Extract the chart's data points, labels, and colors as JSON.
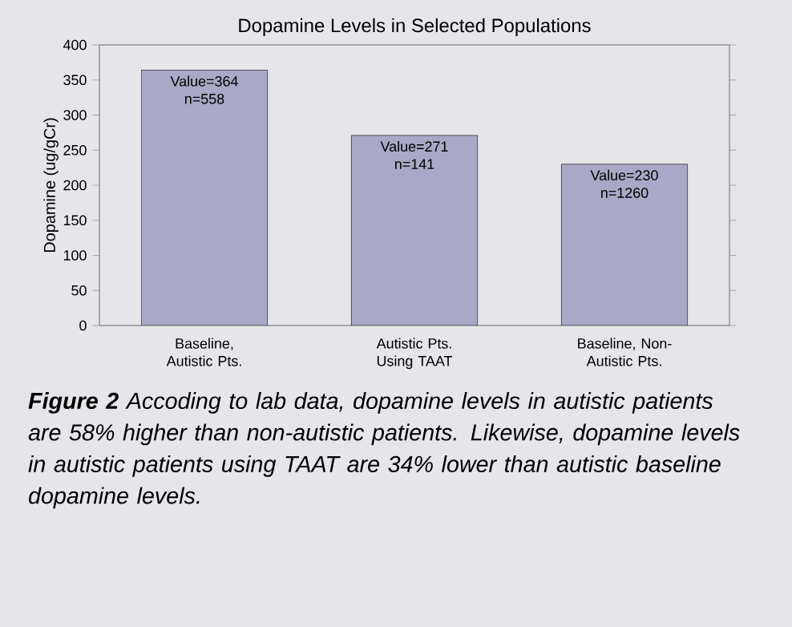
{
  "chart_data": {
    "type": "bar",
    "title": "Dopamine Levels in Selected Populations",
    "ylabel": "Dopamine (ug/gCr)",
    "categories": [
      "Baseline, Autistic Pts.",
      "Autistic Pts. Using TAAT",
      "Baseline, Non-Autistic Pts."
    ],
    "values": [
      364,
      271,
      230
    ],
    "color": "#a9a8c6",
    "value_labels": [
      "Value=364 n=558",
      "Value=271 n=141",
      "Value=230 n=1260"
    ],
    "ylim": [
      0,
      400
    ],
    "yticks": [
      0,
      50,
      100,
      150,
      200,
      250,
      300,
      350,
      400
    ],
    "grid": false,
    "annotations": [
      "**Figure 2** Accoding to lab data, dopamine levels in autistic patients are 58% higher than non-autistic patients. Likewise, dopamine levels in autistic patients using TAAT are 34% lower than autistic baseline dopamine levels."
    ]
  }
}
